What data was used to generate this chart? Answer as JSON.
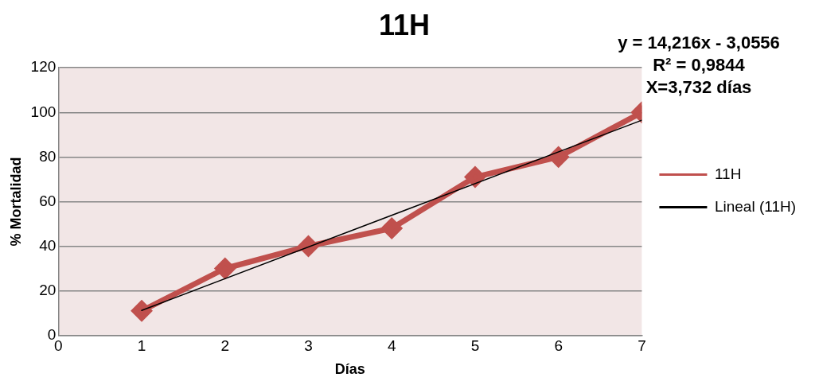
{
  "chart_data": {
    "type": "line",
    "title": "11H",
    "xlabel": "Días",
    "ylabel": "% Mortalidad",
    "x": [
      1,
      2,
      3,
      4,
      5,
      6,
      7
    ],
    "series": [
      {
        "name": "11H",
        "color": "#c0504d",
        "values": [
          11,
          30,
          40,
          48,
          71,
          80,
          100
        ],
        "marker": "diamond"
      },
      {
        "name": "Lineal (11H)",
        "color": "#000000",
        "x": [
          1,
          7
        ],
        "values": [
          11.2,
          96.5
        ],
        "marker": "none"
      }
    ],
    "xlim": [
      0,
      7
    ],
    "xticks": [
      0,
      1,
      2,
      3,
      4,
      5,
      6,
      7
    ],
    "ylim": [
      0,
      120
    ],
    "yticks": [
      0,
      20,
      40,
      60,
      80,
      100,
      120
    ],
    "grid": "y",
    "legend": "right",
    "annotations": [
      "y = 14,216x - 3,0556",
      "R² = 0,9844",
      "X=3,732 días"
    ]
  }
}
